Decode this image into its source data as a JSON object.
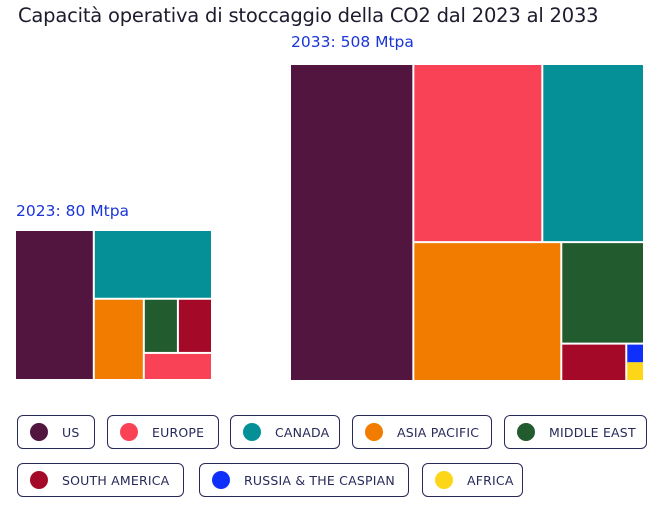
{
  "title": "Capacità operativa di stoccaggio della CO2 dal 2023 al 2033",
  "colors": {
    "us": "#52153f",
    "europe": "#fa4257",
    "canada": "#049096",
    "asia_pacific": "#f27c00",
    "middle_east": "#225b2e",
    "south_america": "#a40a28",
    "russia_caspian": "#0f2ffb",
    "africa": "#fdd617"
  },
  "legend": [
    {
      "key": "us",
      "label": "US",
      "color": "#52153f"
    },
    {
      "key": "europe",
      "label": "EUROPE",
      "color": "#fa4257"
    },
    {
      "key": "canada",
      "label": "CANADA",
      "color": "#049096"
    },
    {
      "key": "asia_pacific",
      "label": "ASIA PACIFIC",
      "color": "#f27c00"
    },
    {
      "key": "middle_east",
      "label": "MIDDLE EAST",
      "color": "#225b2e"
    },
    {
      "key": "south_america",
      "label": "SOUTH AMERICA",
      "color": "#a40a28"
    },
    {
      "key": "russia_caspian",
      "label": "RUSSIA & THE CASPIAN",
      "color": "#0f2ffb"
    },
    {
      "key": "africa",
      "label": "AFRICA",
      "color": "#fdd617"
    }
  ],
  "chart_data": {
    "type": "treemap",
    "title": "Capacità operativa di stoccaggio della CO2 dal 2023 al 2033",
    "unit": "Mtpa",
    "treemaps": [
      {
        "label": "2023: 80 Mtpa",
        "total": 80,
        "values": [
          {
            "key": "us",
            "value": 32
          },
          {
            "key": "canada",
            "value": 22
          },
          {
            "key": "asia_pacific",
            "value": 11
          },
          {
            "key": "middle_east",
            "value": 5
          },
          {
            "key": "south_america",
            "value": 5
          },
          {
            "key": "europe",
            "value": 5
          }
        ]
      },
      {
        "label": "2033: 508 Mtpa",
        "total": 508,
        "values": [
          {
            "key": "us",
            "value": 177
          },
          {
            "key": "europe",
            "value": 104
          },
          {
            "key": "canada",
            "value": 82
          },
          {
            "key": "asia_pacific",
            "value": 93
          },
          {
            "key": "middle_east",
            "value": 38
          },
          {
            "key": "south_america",
            "value": 11
          },
          {
            "key": "russia_caspian",
            "value": 1.5
          },
          {
            "key": "africa",
            "value": 1.5
          }
        ]
      }
    ]
  }
}
